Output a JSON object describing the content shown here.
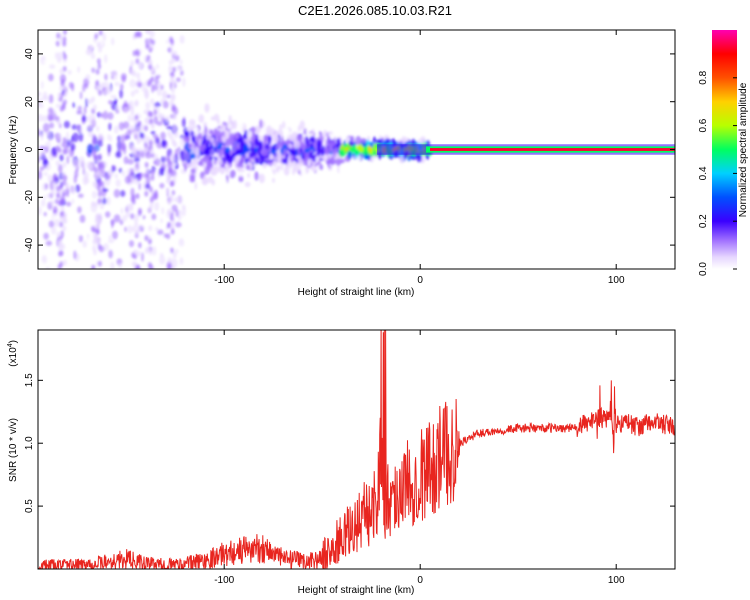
{
  "title": "C2E1.2026.085.10.03.R21",
  "colors": {
    "line": "#e8251f",
    "axes": "#000000",
    "spectrogram_gradient": [
      "#ffffff",
      "#e8d8ff",
      "#a070ff",
      "#3a00ff",
      "#0050ff",
      "#00d0ff",
      "#00ff60",
      "#b8ff00",
      "#ffd000",
      "#ff5000",
      "#ff0000",
      "#ff00b0"
    ]
  },
  "chart_data": [
    {
      "type": "heatmap",
      "title": "",
      "xlabel": "Height of straight line (km)",
      "ylabel": "Frequency (Hz)",
      "xlim": [
        -195,
        130
      ],
      "ylim": [
        -50,
        50
      ],
      "xticks": [
        -100,
        0,
        100
      ],
      "yticks": [
        -40,
        -20,
        0,
        20,
        40
      ],
      "colorbar": {
        "label": "Normalized spectral amplitude",
        "range": [
          0,
          1
        ],
        "ticks": [
          0.0,
          0.2,
          0.4,
          0.6,
          0.8
        ],
        "tick_labels": [
          "0.0",
          "0.2",
          "0.4",
          "0.6",
          "0.8"
        ]
      },
      "description_regions": [
        {
          "x": [
            -195,
            -120
          ],
          "freq_spread": 50,
          "amplitude": 0.25
        },
        {
          "x": [
            -120,
            -40
          ],
          "freq_spread": 15,
          "amplitude": 0.3
        },
        {
          "x": [
            -40,
            5
          ],
          "freq_spread": 4,
          "amplitude": 0.7
        },
        {
          "x": [
            5,
            130
          ],
          "freq_spread": 1.5,
          "amplitude": 1.0
        }
      ]
    },
    {
      "type": "line",
      "title": "",
      "xlabel": "Height of straight line (km)",
      "ylabel": "SNR (10 * v/v)",
      "y_scale_label": "(x10",
      "y_scale_exponent": "4",
      "y_scale_suffix": ")",
      "xlim": [
        -195,
        130
      ],
      "ylim": [
        0,
        1.9
      ],
      "xticks": [
        -100,
        0,
        100
      ],
      "yticks": [
        0.5,
        1.0,
        1.5
      ],
      "ytick_labels": [
        "0.5",
        "1.0",
        "1.5"
      ],
      "series": [
        {
          "x": [
            -195,
            -180,
            -165,
            -150,
            -140,
            -130,
            -120,
            -110,
            -100,
            -90,
            -80,
            -70,
            -60,
            -50,
            -45,
            -40,
            -35,
            -30,
            -25,
            -22,
            -20,
            -18,
            -15,
            -10,
            -5,
            0,
            10,
            20,
            30,
            40,
            50,
            60,
            70,
            80,
            85,
            90,
            95,
            100,
            105,
            110,
            120,
            130
          ],
          "y": [
            0.02,
            0.03,
            0.04,
            0.08,
            0.04,
            0.03,
            0.04,
            0.07,
            0.12,
            0.15,
            0.17,
            0.08,
            0.06,
            0.08,
            0.15,
            0.25,
            0.3,
            0.42,
            0.45,
            0.6,
            0.9,
            0.55,
            0.55,
            0.65,
            0.7,
            0.75,
            0.88,
            1.0,
            1.08,
            1.1,
            1.12,
            1.12,
            1.12,
            1.12,
            1.16,
            1.2,
            1.2,
            1.15,
            1.18,
            1.13,
            1.17,
            1.12
          ]
        }
      ]
    }
  ]
}
